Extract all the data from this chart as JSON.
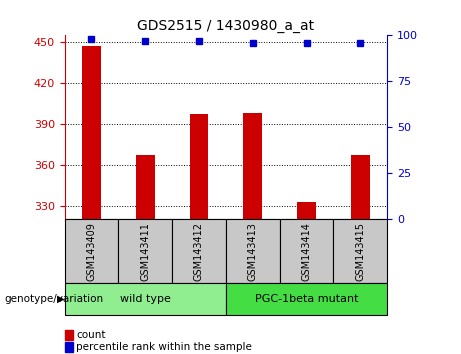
{
  "title": "GDS2515 / 1430980_a_at",
  "samples": [
    "GSM143409",
    "GSM143411",
    "GSM143412",
    "GSM143413",
    "GSM143414",
    "GSM143415"
  ],
  "counts": [
    447,
    367,
    397,
    398,
    333,
    367
  ],
  "percentile_ranks": [
    98,
    97,
    97,
    96,
    96,
    96
  ],
  "ylim_left": [
    320,
    455
  ],
  "ylim_right": [
    0,
    100
  ],
  "yticks_left": [
    330,
    360,
    390,
    420,
    450
  ],
  "yticks_right": [
    0,
    25,
    50,
    75,
    100
  ],
  "bar_color": "#cc0000",
  "dot_color": "#0000cc",
  "grid_color": "#000000",
  "groups": [
    {
      "label": "wild type",
      "start": 0,
      "end": 3,
      "color": "#90ee90"
    },
    {
      "label": "PGC-1beta mutant",
      "start": 3,
      "end": 6,
      "color": "#44dd44"
    }
  ],
  "group_label": "genotype/variation",
  "legend_items": [
    {
      "label": "count",
      "color": "#cc0000"
    },
    {
      "label": "percentile rank within the sample",
      "color": "#0000cc"
    }
  ],
  "xlabel_bg": "#c8c8c8",
  "baseline": 320,
  "bar_width": 0.35
}
